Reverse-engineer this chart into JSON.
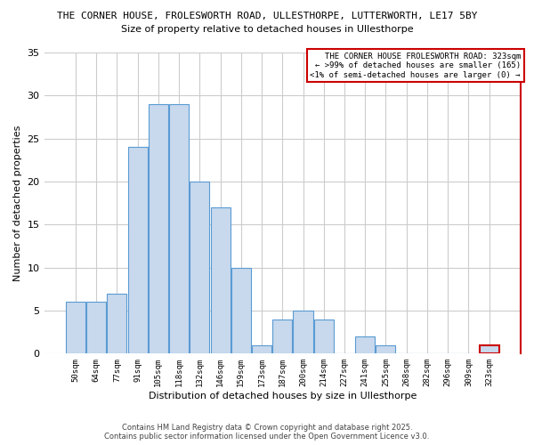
{
  "title_line1": "THE CORNER HOUSE, FROLESWORTH ROAD, ULLESTHORPE, LUTTERWORTH, LE17 5BY",
  "title_line2": "Size of property relative to detached houses in Ullesthorpe",
  "xlabel": "Distribution of detached houses by size in Ullesthorpe",
  "ylabel": "Number of detached properties",
  "categories": [
    "50sqm",
    "64sqm",
    "77sqm",
    "91sqm",
    "105sqm",
    "118sqm",
    "132sqm",
    "146sqm",
    "159sqm",
    "173sqm",
    "187sqm",
    "200sqm",
    "214sqm",
    "227sqm",
    "241sqm",
    "255sqm",
    "268sqm",
    "282sqm",
    "296sqm",
    "309sqm",
    "323sqm"
  ],
  "values": [
    6,
    6,
    7,
    24,
    29,
    29,
    20,
    17,
    10,
    1,
    4,
    5,
    4,
    0,
    2,
    1,
    0,
    0,
    0,
    0,
    1
  ],
  "bar_color": "#c8d9ed",
  "bar_edge_color": "#5a9bd4",
  "highlight_bar_index": 20,
  "ylim": [
    0,
    35
  ],
  "yticks": [
    0,
    5,
    10,
    15,
    20,
    25,
    30,
    35
  ],
  "annotation_title": "THE CORNER HOUSE FROLESWORTH ROAD: 323sqm",
  "annotation_line2": "← >99% of detached houses are smaller (165)",
  "annotation_line3": "<1% of semi-detached houses are larger (0) →",
  "annotation_box_color": "#ffffff",
  "annotation_border_color": "#cc0000",
  "footer_line1": "Contains HM Land Registry data © Crown copyright and database right 2025.",
  "footer_line2": "Contains public sector information licensed under the Open Government Licence v3.0.",
  "background_color": "#ffffff",
  "grid_color": "#cccccc",
  "right_border_color": "#cc0000"
}
